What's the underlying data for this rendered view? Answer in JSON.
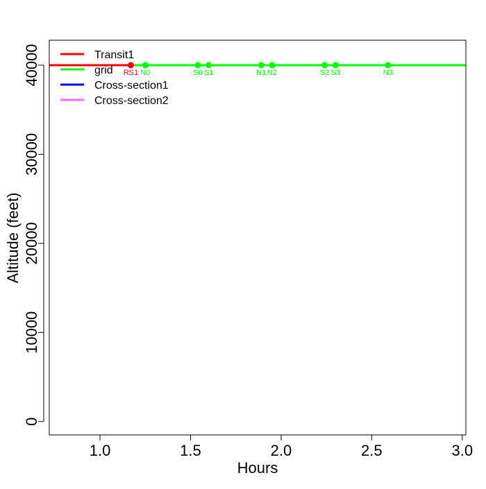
{
  "chart_data": {
    "type": "line",
    "title": "",
    "xlabel": "Hours",
    "ylabel": "Altitude (feet)",
    "xlim": [
      0.72,
      3.02
    ],
    "ylim": [
      -1500,
      42800
    ],
    "x_ticks": [
      1.0,
      1.5,
      2.0,
      2.5,
      3.0
    ],
    "x_tick_labels": [
      "1.0",
      "1.5",
      "2.0",
      "2.5",
      "3.0"
    ],
    "y_ticks": [
      0,
      10000,
      20000,
      30000,
      40000
    ],
    "y_tick_labels": [
      "0",
      "10000",
      "20000",
      "30000",
      "40000"
    ],
    "grid": false,
    "legend_position": "top-left",
    "legend": [
      {
        "label": "Transit1",
        "color": "#ff0000"
      },
      {
        "label": "grid",
        "color": "#00ff00"
      },
      {
        "label": "Cross-section1",
        "color": "#0000ff"
      },
      {
        "label": "Cross-section2",
        "color": "#ff66ff"
      }
    ],
    "series": [
      {
        "name": "Transit1",
        "color": "#ff0000",
        "x": [
          0.72,
          1.17
        ],
        "y": [
          40000,
          40000
        ],
        "points": [
          {
            "x": 1.17,
            "y": 40000,
            "label": "RS1"
          }
        ]
      },
      {
        "name": "grid",
        "color": "#00ff00",
        "x": [
          1.17,
          3.02
        ],
        "y": [
          40000,
          40000
        ],
        "points": [
          {
            "x": 1.25,
            "y": 40000,
            "label": "N0"
          },
          {
            "x": 1.54,
            "y": 40000,
            "label": "S0"
          },
          {
            "x": 1.6,
            "y": 40000,
            "label": "S1"
          },
          {
            "x": 1.89,
            "y": 40000,
            "label": "N1"
          },
          {
            "x": 1.95,
            "y": 40000,
            "label": "N2"
          },
          {
            "x": 2.24,
            "y": 40000,
            "label": "S2"
          },
          {
            "x": 2.3,
            "y": 40000,
            "label": "S3"
          },
          {
            "x": 2.59,
            "y": 40000,
            "label": "N3"
          }
        ]
      }
    ]
  }
}
